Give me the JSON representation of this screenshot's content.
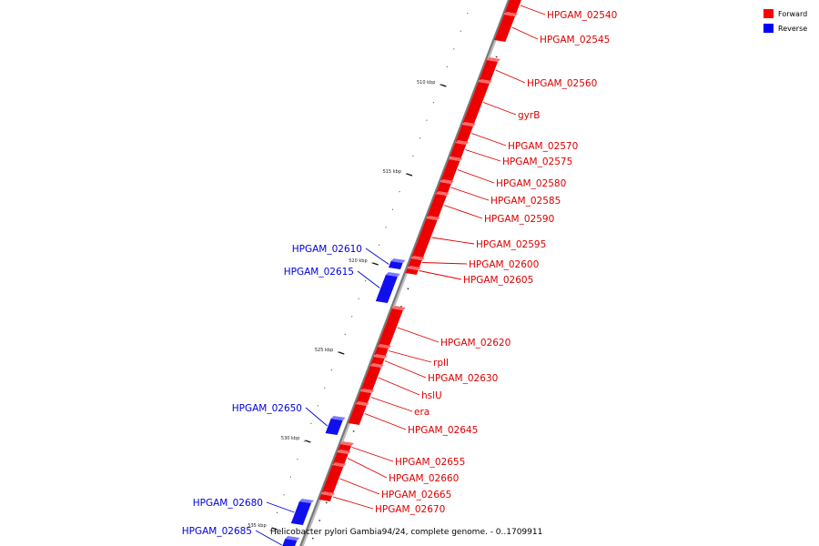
{
  "legend": [
    {
      "label": "Forward",
      "color": "#ff0000"
    },
    {
      "label": "Reverse",
      "color": "#0000ff"
    }
  ],
  "caption": "Helicobacter pylori Gambia94/24, complete genome. - 0..1709911",
  "colors": {
    "forward": "#ee0000",
    "forward_top": "#ff6a6a",
    "reverse": "#1010ee",
    "reverse_top": "#7a7aff",
    "axis": "#888888"
  },
  "kbp_labels": [
    "510 kbp",
    "515 kbp",
    "520 kbp",
    "525 kbp",
    "530 kbp",
    "535 kbp"
  ],
  "genes": [
    {
      "name": "HPGAM_02540",
      "strand": "forward"
    },
    {
      "name": "HPGAM_02545",
      "strand": "forward"
    },
    {
      "name": "HPGAM_02560",
      "strand": "forward"
    },
    {
      "name": "gyrB",
      "strand": "forward"
    },
    {
      "name": "HPGAM_02570",
      "strand": "forward"
    },
    {
      "name": "HPGAM_02575",
      "strand": "forward"
    },
    {
      "name": "HPGAM_02580",
      "strand": "forward"
    },
    {
      "name": "HPGAM_02585",
      "strand": "forward"
    },
    {
      "name": "HPGAM_02590",
      "strand": "forward"
    },
    {
      "name": "HPGAM_02595",
      "strand": "forward"
    },
    {
      "name": "HPGAM_02600",
      "strand": "forward"
    },
    {
      "name": "HPGAM_02605",
      "strand": "forward"
    },
    {
      "name": "HPGAM_02610",
      "strand": "reverse"
    },
    {
      "name": "HPGAM_02615",
      "strand": "reverse"
    },
    {
      "name": "HPGAM_02620",
      "strand": "forward"
    },
    {
      "name": "rplI",
      "strand": "forward"
    },
    {
      "name": "HPGAM_02630",
      "strand": "forward"
    },
    {
      "name": "hslU",
      "strand": "forward"
    },
    {
      "name": "era",
      "strand": "forward"
    },
    {
      "name": "HPGAM_02645",
      "strand": "forward"
    },
    {
      "name": "HPGAM_02650",
      "strand": "reverse"
    },
    {
      "name": "HPGAM_02655",
      "strand": "forward"
    },
    {
      "name": "HPGAM_02660",
      "strand": "forward"
    },
    {
      "name": "HPGAM_02665",
      "strand": "forward"
    },
    {
      "name": "HPGAM_02670",
      "strand": "forward"
    },
    {
      "name": "HPGAM_02680",
      "strand": "reverse"
    },
    {
      "name": "HPGAM_02685",
      "strand": "reverse"
    }
  ]
}
